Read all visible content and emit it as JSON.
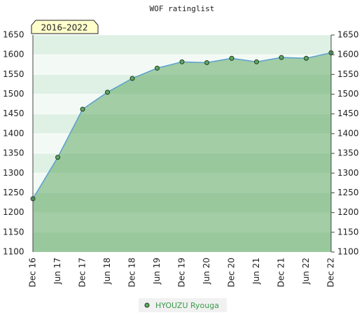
{
  "chart_data": {
    "type": "area",
    "title": "WOF ratinglist",
    "annotation": "2016–2022",
    "categories": [
      "Dec 16",
      "Jun 17",
      "Dec 17",
      "Jun 18",
      "Dec 18",
      "Jun 19",
      "Dec 19",
      "Jun 20",
      "Dec 20",
      "Jun 21",
      "Dec 21",
      "Jun 22",
      "Dec 22"
    ],
    "series": [
      {
        "name": "HYOUZU Ryouga",
        "color": "#5fa862",
        "line_color": "#5b9fd0",
        "values": [
          1235,
          1340,
          1462,
          1505,
          1540,
          1566,
          1582,
          1580,
          1591,
          1582,
          1593,
          1591,
          1605
        ]
      }
    ],
    "ylim": [
      1100,
      1650
    ],
    "yticks": [
      1100,
      1150,
      1200,
      1250,
      1300,
      1350,
      1400,
      1450,
      1500,
      1550,
      1600,
      1650
    ],
    "grid": true
  }
}
